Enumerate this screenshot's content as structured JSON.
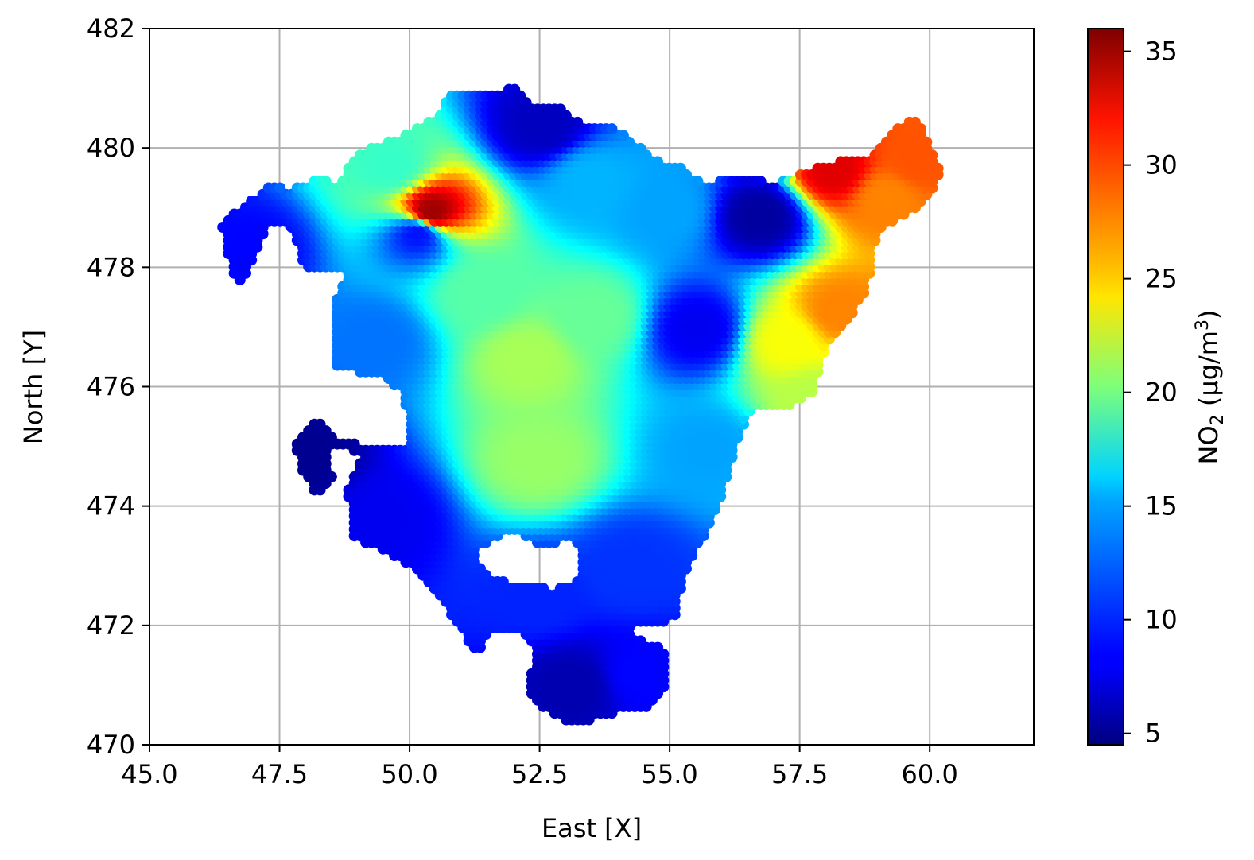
{
  "chart_data": {
    "type": "scatter",
    "title": "",
    "xlabel": "East [X]",
    "ylabel": "North [Y]",
    "xlim": [
      45.0,
      62.0
    ],
    "ylim": [
      470,
      482
    ],
    "xticks": [
      "45.0",
      "47.5",
      "50.0",
      "52.5",
      "55.0",
      "57.5",
      "60.0"
    ],
    "yticks": [
      "470",
      "472",
      "474",
      "476",
      "478",
      "480",
      "482"
    ],
    "grid": true,
    "colormap": "jet",
    "colorbar": {
      "label_main": "NO",
      "label_sub": "2",
      "label_unit_pre": " (µg/m",
      "label_unit_sup": "3",
      "label_unit_post": ")",
      "range": [
        4.5,
        36
      ],
      "ticks": [
        "5",
        "10",
        "15",
        "20",
        "25",
        "30",
        "35"
      ]
    },
    "value_sources": [
      {
        "x": 52.3,
        "y": 476.5,
        "value": 21.5
      },
      {
        "x": 52.5,
        "y": 474.8,
        "value": 21.0
      },
      {
        "x": 51.4,
        "y": 477.6,
        "value": 19.0
      },
      {
        "x": 53.6,
        "y": 477.2,
        "value": 19.5
      },
      {
        "x": 55.6,
        "y": 477.0,
        "value": 8.0
      },
      {
        "x": 57.3,
        "y": 476.8,
        "value": 24.0
      },
      {
        "x": 58.3,
        "y": 477.3,
        "value": 28.0
      },
      {
        "x": 59.2,
        "y": 479.2,
        "value": 28.0
      },
      {
        "x": 59.8,
        "y": 479.8,
        "value": 29.5
      },
      {
        "x": 58.2,
        "y": 479.65,
        "value": 33.0
      },
      {
        "x": 50.45,
        "y": 478.95,
        "value": 35.0
      },
      {
        "x": 49.7,
        "y": 479.7,
        "value": 18.0
      },
      {
        "x": 56.8,
        "y": 478.9,
        "value": 5.5
      },
      {
        "x": 52.6,
        "y": 480.4,
        "value": 6.5
      },
      {
        "x": 50.2,
        "y": 478.6,
        "value": 9.0
      },
      {
        "x": 47.0,
        "y": 478.3,
        "value": 8.5
      },
      {
        "x": 48.0,
        "y": 474.9,
        "value": 5.0
      },
      {
        "x": 49.5,
        "y": 473.8,
        "value": 8.0
      },
      {
        "x": 53.2,
        "y": 471.0,
        "value": 6.0
      },
      {
        "x": 54.5,
        "y": 471.2,
        "value": 8.5
      },
      {
        "x": 52.5,
        "y": 472.5,
        "value": 9.5
      },
      {
        "x": 54.3,
        "y": 473.0,
        "value": 10.0
      },
      {
        "x": 53.5,
        "y": 479.5,
        "value": 14.0
      },
      {
        "x": 55.0,
        "y": 479.0,
        "value": 13.5
      },
      {
        "x": 49.4,
        "y": 476.8,
        "value": 12.0
      },
      {
        "x": 55.8,
        "y": 475.0,
        "value": 13.5
      },
      {
        "x": 57.8,
        "y": 475.8,
        "value": 22.0
      }
    ]
  }
}
